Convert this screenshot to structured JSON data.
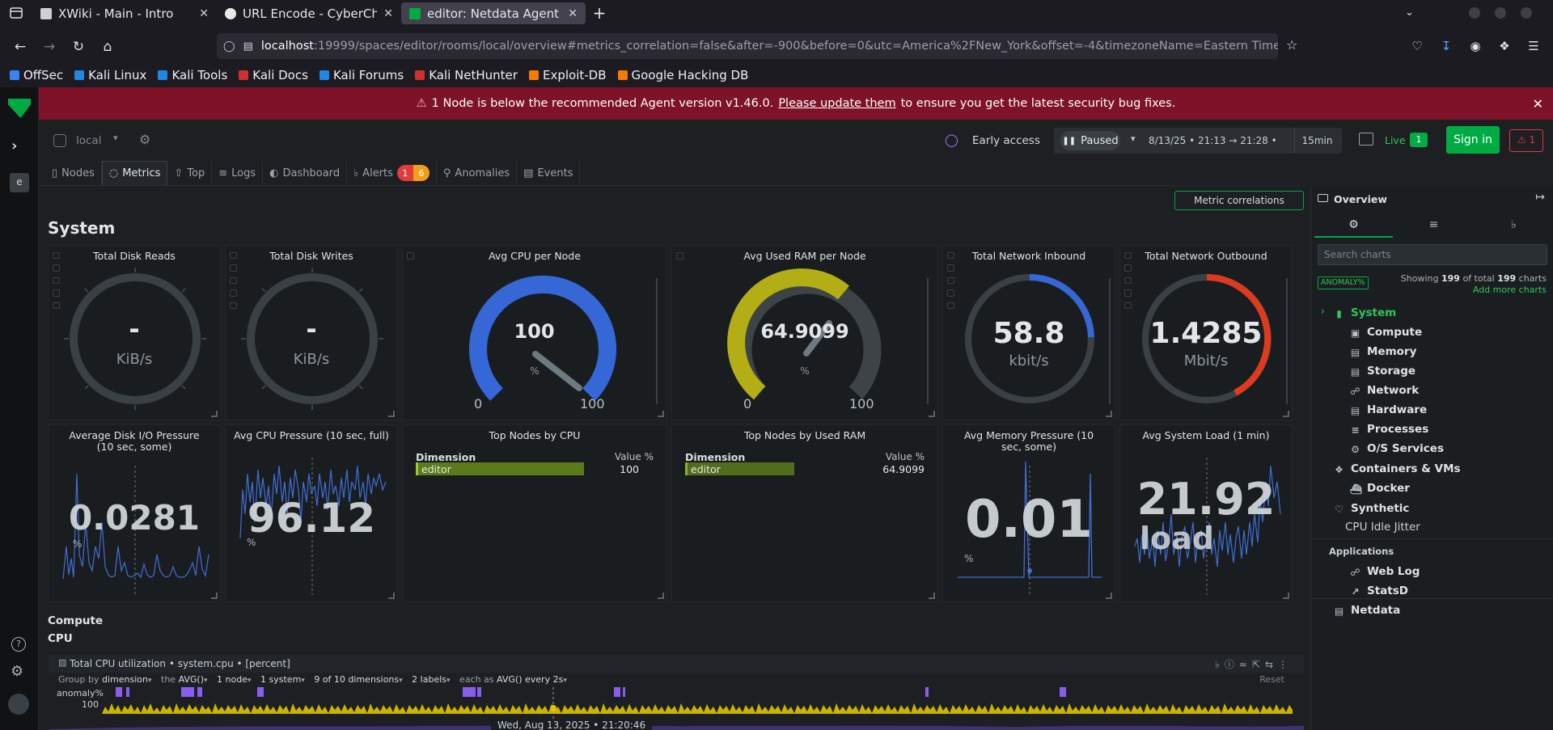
{
  "browser": {
    "tabs": [
      {
        "title": "XWiki - Main - Intro",
        "active": false,
        "fav_color": "#cfcfd8"
      },
      {
        "title": "URL Encode - CyberChef",
        "active": false,
        "fav_color": "#e8e8e8"
      },
      {
        "title": "editor: Netdata Agent Co",
        "active": true,
        "fav_color": "#00ab44"
      }
    ],
    "url_host": "localhost",
    "url_path": ":19999/spaces/editor/rooms/local/overview#metrics_correlation=false&after=-900&before=0&utc=America%2FNew_York&offset=-4&timezoneName=Eastern Time (US &m",
    "bookmarks": [
      {
        "label": "OffSec",
        "color": "#3b82f6"
      },
      {
        "label": "Kali Linux",
        "color": "#1e88e5"
      },
      {
        "label": "Kali Tools",
        "color": "#1e88e5"
      },
      {
        "label": "Kali Docs",
        "color": "#d32f2f"
      },
      {
        "label": "Kali Forums",
        "color": "#1e88e5"
      },
      {
        "label": "Kali NetHunter",
        "color": "#d32f2f"
      },
      {
        "label": "Exploit-DB",
        "color": "#f57c00"
      },
      {
        "label": "Google Hacking DB",
        "color": "#f57c00"
      }
    ]
  },
  "banner": {
    "before": "1 Node is below the recommended Agent version v1.46.0.",
    "link": "Please update them",
    "after": "to ensure you get the latest security bug fixes."
  },
  "topbar": {
    "room": "local",
    "early_access": "Early access",
    "paused": "Paused",
    "timerange": "8/13/25 • 21:13 → 21:28 •",
    "duration": "15min",
    "live": "Live",
    "live_count": "1",
    "sign_in": "Sign in",
    "alert_count": "1"
  },
  "navtabs": [
    {
      "label": "Nodes",
      "icon": "nodes-icon"
    },
    {
      "label": "Metrics",
      "icon": "metrics-icon"
    },
    {
      "label": "Top",
      "icon": "top-icon"
    },
    {
      "label": "Logs",
      "icon": "logs-icon"
    },
    {
      "label": "Dashboard",
      "icon": "dashboard-icon"
    },
    {
      "label": "Alerts",
      "icon": "bell-icon"
    },
    {
      "label": "Anomalies",
      "icon": "anomalies-icon"
    },
    {
      "label": "Events",
      "icon": "events-icon"
    }
  ],
  "alert_badges": {
    "critical": "1",
    "warning": "6"
  },
  "metric_correlations": "Metric correlations",
  "section_title": "System",
  "gauges": [
    {
      "title": "Total Disk Reads",
      "value": "-",
      "unit": "KiB/s",
      "fraction": 0,
      "color": "#3a4145"
    },
    {
      "title": "Total Disk Writes",
      "value": "-",
      "unit": "KiB/s",
      "fraction": 0,
      "color": "#3a4145"
    },
    {
      "title": "Avg CPU per Node",
      "value": "100",
      "unit": "%",
      "min": "0",
      "max": "100",
      "fraction": 1.0,
      "color": "#3667d6"
    },
    {
      "title": "Avg Used RAM per Node",
      "value": "64.9099",
      "unit": "%",
      "min": "0",
      "max": "100",
      "fraction": 0.649,
      "color": "#b3ae15"
    },
    {
      "title": "Total Network Inbound",
      "value": "58.8",
      "unit": "kbit/s",
      "fraction": 0.2,
      "color": "#3667d6"
    },
    {
      "title": "Total Network Outbound",
      "value": "1.4285",
      "unit": "Mbit/s",
      "fraction": 0.42,
      "color": "#e03a1e"
    }
  ],
  "sparks": [
    {
      "title": "Average Disk I/O Pressure (10 sec, some)",
      "value": "0.0281",
      "unit": "%"
    },
    {
      "title": "Avg CPU Pressure (10 sec, full)",
      "value": "96.12",
      "unit": "%"
    },
    {
      "title": "Avg Memory Pressure (10 sec, some)",
      "value": "0.01",
      "unit": "%"
    },
    {
      "title": "Avg System Load (1 min)",
      "value": "21.92",
      "unit": "load"
    }
  ],
  "topnodes": [
    {
      "title": "Top Nodes by CPU",
      "dim_header": "Dimension",
      "val_header": "Value %",
      "row_label": "editor",
      "row_value": "100",
      "fraction": 1.0
    },
    {
      "title": "Top Nodes by Used RAM",
      "dim_header": "Dimension",
      "val_header": "Value %",
      "row_label": "editor",
      "row_value": "64.9099",
      "fraction": 0.649
    }
  ],
  "compute_label": "Compute",
  "cpu_label": "CPU",
  "cpu_chart": {
    "title": "Total CPU utilization • system.cpu • [percent]",
    "group_by": "Group by",
    "group_val": "dimension",
    "the": "the",
    "agg": "AVG()",
    "nodes": "1 node",
    "systems": "1 system",
    "dims": "9 of 10 dimensions",
    "labels": "2 labels",
    "each_as": "each as",
    "every": "AVG() every 2s",
    "reset": "Reset",
    "anomaly": "anomaly%",
    "y100": "100",
    "timestamp": "Wed, Aug 13, 2025 • 21:20:46"
  },
  "overview": {
    "title": "Overview",
    "search_placeholder": "Search charts",
    "anomaly_badge": "ANOMALY%",
    "showing": "Showing",
    "showing_n": "199",
    "of_total": "of total",
    "total_n": "199",
    "charts": "charts",
    "add_more": "Add more charts",
    "tree": [
      {
        "label": "System",
        "icon": "bookmark-icon",
        "level": 0,
        "active": true
      },
      {
        "label": "Compute",
        "icon": "cpu-icon",
        "level": 1
      },
      {
        "label": "Memory",
        "icon": "memory-icon",
        "level": 1
      },
      {
        "label": "Storage",
        "icon": "storage-icon",
        "level": 1
      },
      {
        "label": "Network",
        "icon": "network-icon",
        "level": 1
      },
      {
        "label": "Hardware",
        "icon": "hardware-icon",
        "level": 1
      },
      {
        "label": "Processes",
        "icon": "processes-icon",
        "level": 1
      },
      {
        "label": "O/S Services",
        "icon": "services-icon",
        "level": 1
      },
      {
        "label": "Containers & VMs",
        "icon": "containers-icon",
        "level": 0
      },
      {
        "label": "Docker",
        "icon": "docker-icon",
        "level": 1
      },
      {
        "label": "Synthetic",
        "icon": "heart-icon",
        "level": 0
      },
      {
        "label": "CPU Idle Jitter",
        "icon": "",
        "level": 2
      },
      {
        "label": "Applications",
        "icon": "",
        "level": 3
      },
      {
        "label": "Web Log",
        "icon": "globe-icon",
        "level": 1
      },
      {
        "label": "StatsD",
        "icon": "chart-icon",
        "level": 1
      },
      {
        "label": "Netdata",
        "icon": "netdata-icon",
        "level": 0
      }
    ]
  }
}
